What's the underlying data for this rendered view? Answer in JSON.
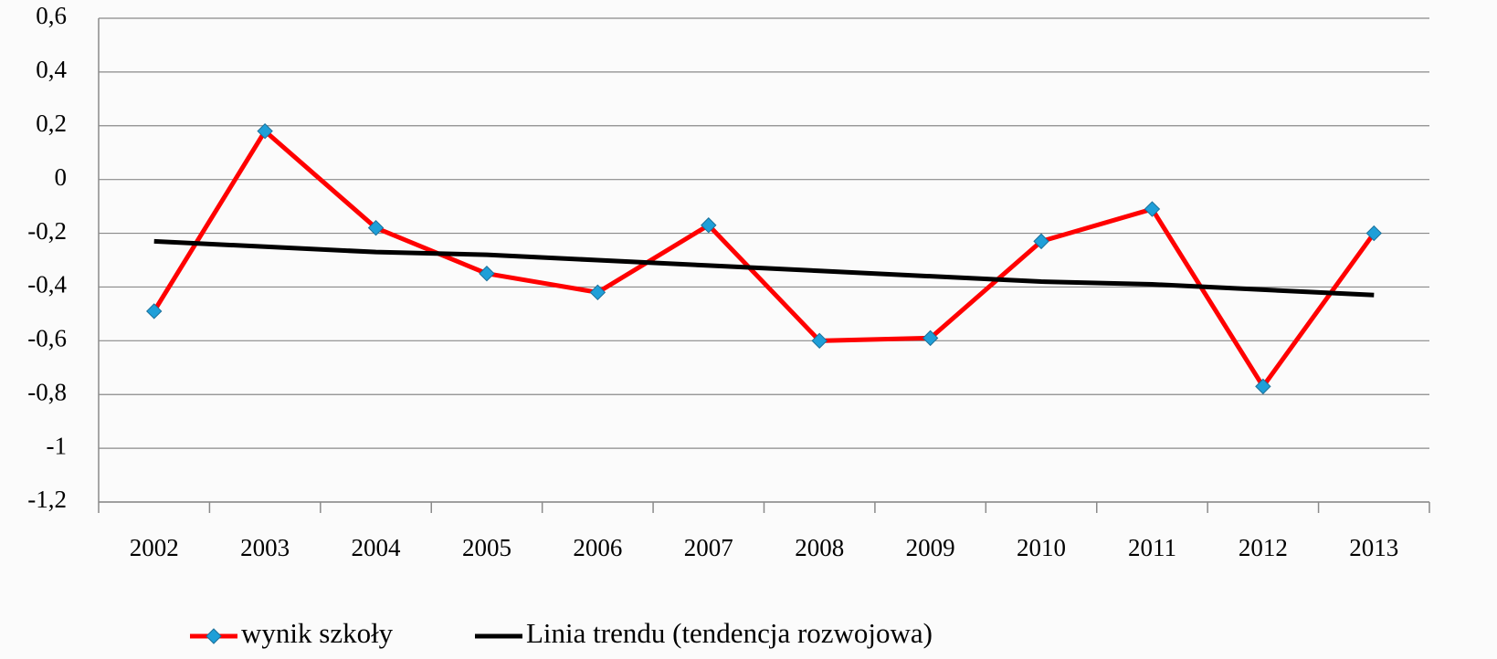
{
  "chart_data": {
    "type": "line",
    "categories": [
      "2002",
      "2003",
      "2004",
      "2005",
      "2006",
      "2007",
      "2008",
      "2009",
      "2010",
      "2011",
      "2012",
      "2013"
    ],
    "series": [
      {
        "name": "wynik szkoły",
        "color": "#ff0000",
        "marker_color": "#1f9fd8",
        "values": [
          -0.49,
          0.18,
          -0.18,
          -0.35,
          -0.42,
          -0.17,
          -0.6,
          -0.59,
          -0.23,
          -0.11,
          -0.77,
          -0.2
        ]
      },
      {
        "name": "Linia trendu (tendencja rozwojowa)",
        "color": "#000000",
        "values": [
          -0.23,
          -0.25,
          -0.27,
          -0.28,
          -0.3,
          -0.32,
          -0.34,
          -0.36,
          -0.38,
          -0.39,
          -0.41,
          -0.43
        ]
      }
    ],
    "ylim": [
      -1.2,
      0.6
    ],
    "yticks": [
      {
        "value": -1.2,
        "label": "-1,2"
      },
      -1,
      {
        "value": -0.8,
        "label": "-0,8"
      },
      {
        "value": -0.6,
        "label": "-0,6"
      },
      {
        "value": -0.4,
        "label": "-0,4"
      },
      {
        "value": -0.2,
        "label": "-0,2"
      },
      0,
      {
        "value": 0.2,
        "label": "0,2"
      },
      {
        "value": 0.4,
        "label": "0,4"
      },
      {
        "value": 0.6,
        "label": "0,6"
      }
    ],
    "grid": true,
    "legend": "bottom"
  }
}
